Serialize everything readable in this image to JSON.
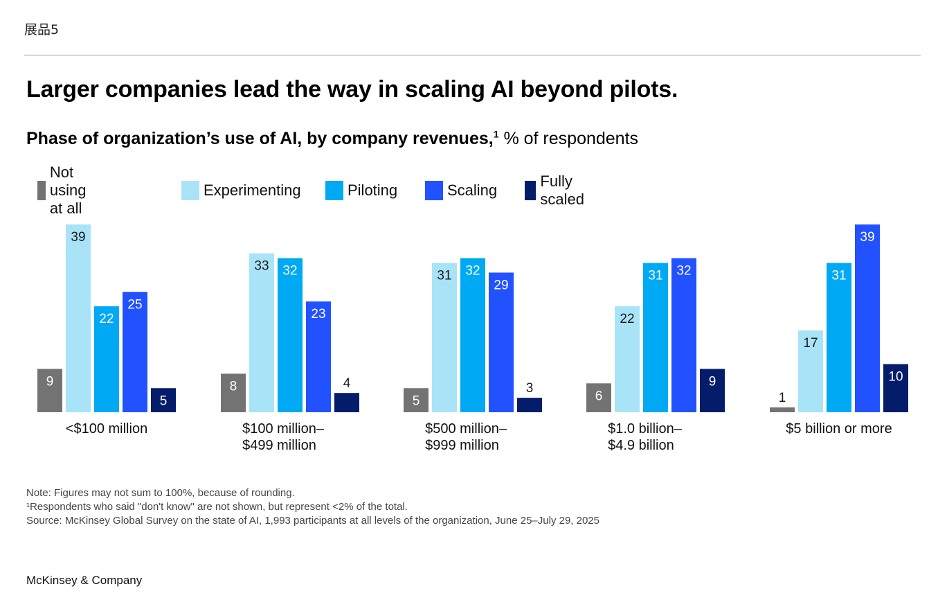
{
  "exhibit_label": "展品5",
  "title": "Larger companies lead the way in scaling AI beyond pilots.",
  "subtitle": {
    "bold": "Phase of organization’s use of AI, by company revenues,",
    "sup": "1",
    "normal": " % of respondents"
  },
  "legend": [
    {
      "label": "Not using at all",
      "color": "#737373"
    },
    {
      "label": "Experimenting",
      "color": "#a9e3f8"
    },
    {
      "label": "Piloting",
      "color": "#00a9f4"
    },
    {
      "label": "Scaling",
      "color": "#2251ff"
    },
    {
      "label": "Fully scaled",
      "color": "#051c6b"
    }
  ],
  "chart_data": {
    "type": "bar",
    "title": "Larger companies lead the way in scaling AI beyond pilots.",
    "ylabel": "% of respondents",
    "categories": [
      [
        "<$100 million"
      ],
      [
        "$100 million–",
        "$499 million"
      ],
      [
        "$500 million–",
        "$999 million"
      ],
      [
        "$1.0 billion–",
        "$4.9 billion"
      ],
      [
        "$5 billion or more"
      ]
    ],
    "series": [
      {
        "name": "Not using at all",
        "color": "#737373",
        "values": [
          9,
          8,
          5,
          6,
          1
        ]
      },
      {
        "name": "Experimenting",
        "color": "#a9e3f8",
        "values": [
          39,
          33,
          31,
          22,
          17
        ]
      },
      {
        "name": "Piloting",
        "color": "#00a9f4",
        "values": [
          22,
          32,
          32,
          31,
          31
        ]
      },
      {
        "name": "Scaling",
        "color": "#2251ff",
        "values": [
          25,
          23,
          29,
          32,
          39
        ]
      },
      {
        "name": "Fully scaled",
        "color": "#051c6b",
        "values": [
          5,
          4,
          3,
          9,
          10
        ]
      }
    ],
    "ylim": [
      0,
      40
    ],
    "grid": false,
    "legend_position": "top-left"
  },
  "notes": [
    "Note: Figures may not sum to 100%, because of rounding.",
    "¹Respondents who said \"don't know\" are not shown, but represent <2% of the total.",
    " Source: McKinsey Global Survey on the state of AI, 1,993 participants at all levels of the organization, June 25–July 29, 2025"
  ],
  "brand": "McKinsey & Company"
}
